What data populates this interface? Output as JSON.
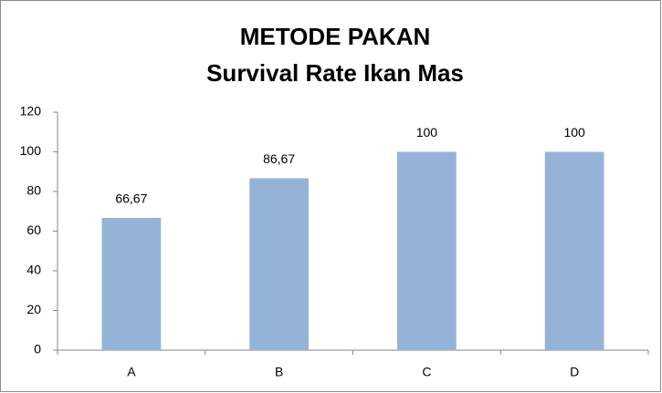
{
  "chart_data": {
    "type": "bar",
    "title": [
      "METODE PAKAN",
      "Survival Rate Ikan Mas"
    ],
    "categories": [
      "A",
      "B",
      "C",
      "D"
    ],
    "values": [
      66.67,
      86.67,
      100,
      100
    ],
    "value_labels": [
      "66,67",
      "86,67",
      "100",
      "100"
    ],
    "color": "#95b3d7",
    "ylim": [
      0,
      120
    ],
    "yticks": [
      0,
      20,
      40,
      60,
      80,
      100,
      120
    ],
    "grid": false
  }
}
